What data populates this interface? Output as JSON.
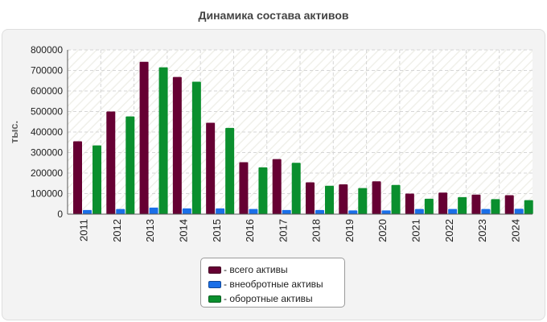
{
  "chart_data": {
    "type": "bar",
    "title": "Динамика состава активов",
    "ylabel": "тыс.",
    "xlabel": "",
    "ylim": [
      0,
      800000
    ],
    "yticks": [
      "0",
      "100000",
      "200000",
      "300000",
      "400000",
      "500000",
      "600000",
      "700000",
      "800000"
    ],
    "grid": true,
    "legend_position": "bottom-center",
    "categories": [
      "2011",
      "2012",
      "2013",
      "2014",
      "2015",
      "2016",
      "2017",
      "2018",
      "2019",
      "2020",
      "2021",
      "2022",
      "2023",
      "2024"
    ],
    "series": [
      {
        "name": "- всего активы",
        "color": "#660033",
        "values": [
          355000,
          500000,
          742000,
          668000,
          445000,
          253000,
          268000,
          155000,
          145000,
          160000,
          100000,
          105000,
          95000,
          92000
        ]
      },
      {
        "name": "- внеобротные активы",
        "color": "#1a6fe8",
        "values": [
          20000,
          25000,
          32000,
          28000,
          28000,
          25000,
          20000,
          20000,
          18000,
          18000,
          25000,
          25000,
          25000,
          26000
        ]
      },
      {
        "name": "- оборотные активы",
        "color": "#0a8f2e",
        "values": [
          335000,
          476000,
          715000,
          645000,
          420000,
          228000,
          250000,
          138000,
          127000,
          142000,
          75000,
          83000,
          73000,
          68000
        ]
      }
    ]
  }
}
